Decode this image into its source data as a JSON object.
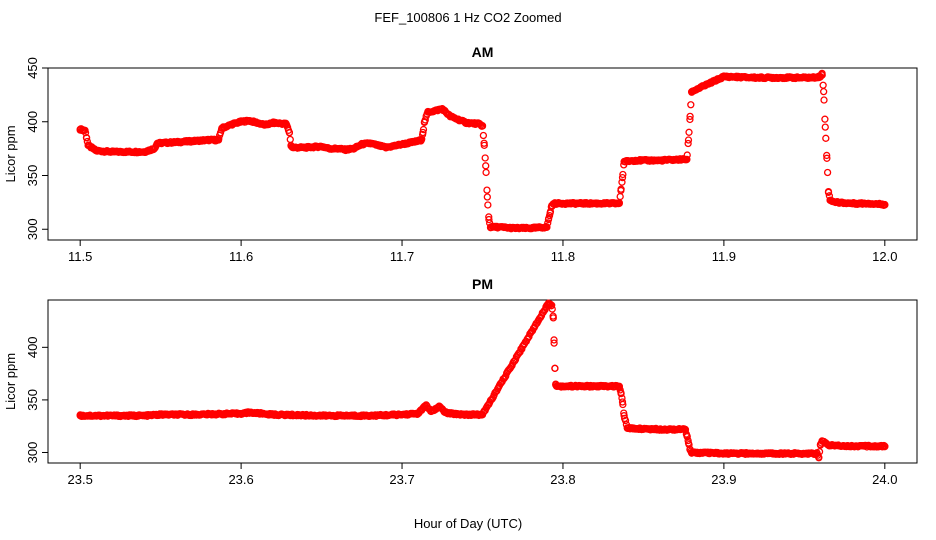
{
  "figure": {
    "title": "FEF_100806  1 Hz CO2 Zoomed",
    "xlabel": "Hour of Day (UTC)"
  },
  "chart_data": [
    {
      "type": "scatter",
      "title": "AM",
      "ylabel": "Licor ppm",
      "xlim": [
        11.48,
        12.02
      ],
      "ylim": [
        290,
        450
      ],
      "xticks": [
        11.5,
        11.6,
        11.7,
        11.8,
        11.9,
        12.0
      ],
      "xtick_labels": [
        "11.5",
        "11.6",
        "11.7",
        "11.8",
        "11.9",
        "12.0"
      ],
      "yticks": [
        300,
        350,
        400,
        450
      ],
      "ytick_labels": [
        "300",
        "350",
        "400",
        "450"
      ],
      "grid": false,
      "marker_color": "#ff0000",
      "series": [
        {
          "x": [
            11.5,
            11.503,
            11.504,
            11.505,
            11.51,
            11.52,
            11.53,
            11.54,
            11.546,
            11.548,
            11.56,
            11.57,
            11.58,
            11.586,
            11.588,
            11.595,
            11.6,
            11.605,
            11.61,
            11.615,
            11.62,
            11.628,
            11.63,
            11.631,
            11.632,
            11.64,
            11.65,
            11.655,
            11.66,
            11.665,
            11.67,
            11.675,
            11.68,
            11.685,
            11.69,
            11.7,
            11.71,
            11.712,
            11.713,
            11.714,
            11.716,
            11.72,
            11.725,
            11.73,
            11.74,
            11.748,
            11.75,
            11.751,
            11.752,
            11.753,
            11.754,
            11.755,
            11.76,
            11.77,
            11.78,
            11.79,
            11.791,
            11.792,
            11.793,
            11.795,
            11.8,
            11.81,
            11.82,
            11.83,
            11.835,
            11.836,
            11.837,
            11.838,
            11.845,
            11.86,
            11.875,
            11.877,
            11.878,
            11.879,
            11.88,
            11.9,
            11.92,
            11.94,
            11.955,
            11.96,
            11.961,
            11.962,
            11.963,
            11.964,
            11.965,
            11.966,
            11.97,
            11.98,
            11.99,
            12.0
          ],
          "y": [
            393,
            392,
            385,
            378,
            373,
            372,
            372,
            372,
            375,
            380,
            381,
            382,
            383,
            383,
            394,
            398,
            400,
            401,
            399,
            397,
            399,
            398,
            390,
            378,
            376,
            376,
            377,
            375,
            375,
            374,
            375,
            379,
            380,
            378,
            376,
            379,
            382,
            383,
            390,
            400,
            409,
            410,
            412,
            405,
            399,
            398,
            396,
            380,
            359,
            330,
            309,
            302,
            302,
            301,
            301,
            302,
            309,
            315,
            322,
            324,
            324,
            324,
            324,
            324,
            324,
            336,
            348,
            363,
            364,
            364,
            365,
            365,
            383,
            405,
            428,
            442,
            441,
            441,
            441,
            442,
            445,
            428,
            395,
            366,
            335,
            327,
            325,
            324,
            324,
            323
          ]
        }
      ]
    },
    {
      "type": "scatter",
      "title": "PM",
      "ylabel": "Licor ppm",
      "xlim": [
        23.48,
        24.02
      ],
      "ylim": [
        290,
        445
      ],
      "xticks": [
        23.5,
        23.6,
        23.7,
        23.8,
        23.9,
        24.0
      ],
      "xtick_labels": [
        "23.5",
        "23.6",
        "23.7",
        "23.8",
        "23.9",
        "24.0"
      ],
      "yticks": [
        300,
        350,
        400
      ],
      "ytick_labels": [
        "300",
        "350",
        "400"
      ],
      "grid": false,
      "marker_color": "#ff0000",
      "series": [
        {
          "x": [
            23.5,
            23.52,
            23.54,
            23.55,
            23.57,
            23.6,
            23.605,
            23.62,
            23.65,
            23.68,
            23.7,
            23.71,
            23.713,
            23.715,
            23.718,
            23.72,
            23.723,
            23.727,
            23.73,
            23.74,
            23.75,
            23.791,
            23.792,
            23.793,
            23.794,
            23.7945,
            23.795,
            23.7955,
            23.796,
            23.8,
            23.82,
            23.835,
            23.836,
            23.837,
            23.838,
            23.84,
            23.86,
            23.876,
            23.877,
            23.878,
            23.879,
            23.88,
            23.9,
            23.92,
            23.94,
            23.958,
            23.959,
            23.96,
            23.961,
            23.965,
            23.98,
            24.0
          ],
          "y": [
            335,
            335,
            335,
            336,
            336,
            337,
            338,
            336,
            335,
            335,
            336,
            337,
            342,
            345,
            339,
            340,
            344,
            338,
            337,
            336,
            336,
            442,
            441,
            440,
            428,
            404,
            380,
            365,
            363,
            363,
            363,
            363,
            357,
            348,
            335,
            323,
            322,
            322,
            316,
            309,
            303,
            300,
            299,
            299,
            299,
            299,
            295,
            307,
            311,
            307,
            306,
            306
          ]
        }
      ]
    }
  ]
}
